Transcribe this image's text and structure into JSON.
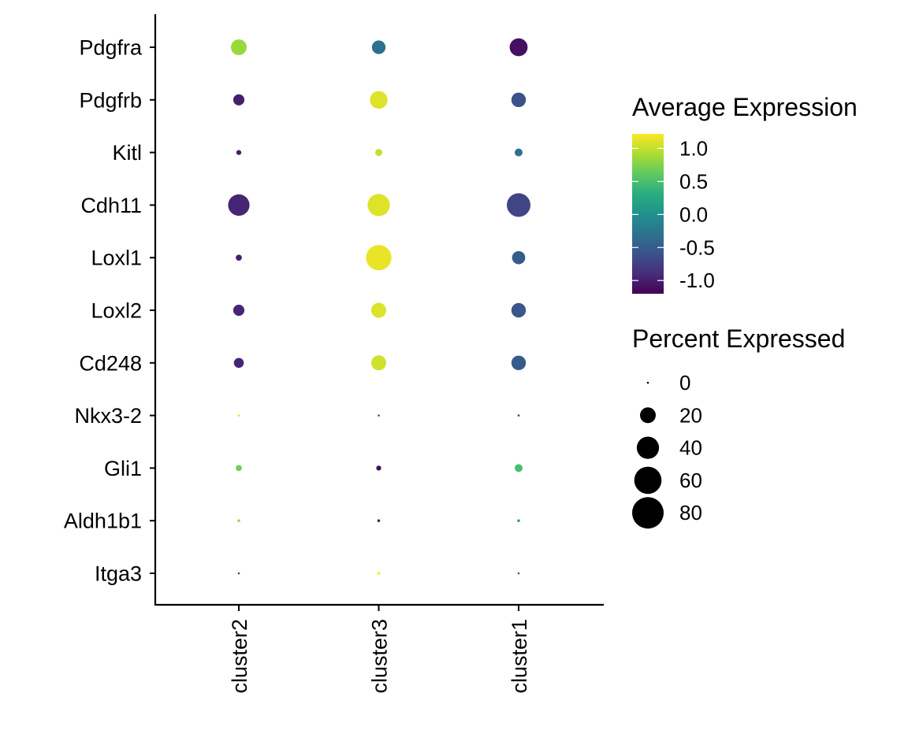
{
  "chart_data": {
    "type": "dotplot",
    "clusters": [
      "cluster2",
      "cluster3",
      "cluster1"
    ],
    "genes": [
      "Pdgfra",
      "Pdgfrb",
      "Kitl",
      "Cdh11",
      "Loxl1",
      "Loxl2",
      "Cd248",
      "Nkx3-2",
      "Gli1",
      "Aldh1b1",
      "Itga3"
    ],
    "avg_expression": [
      [
        0.85,
        -0.3,
        -1.1
      ],
      [
        -1.0,
        1.1,
        -0.6
      ],
      [
        -1.0,
        1.0,
        -0.3
      ],
      [
        -0.95,
        1.1,
        -0.7
      ],
      [
        -1.0,
        1.15,
        -0.5
      ],
      [
        -0.95,
        1.1,
        -0.55
      ],
      [
        -0.95,
        1.05,
        -0.5
      ],
      [
        1.1,
        -0.6,
        -0.8
      ],
      [
        0.7,
        -1.1,
        0.5
      ],
      [
        0.8,
        -1.1,
        0.1
      ],
      [
        -0.8,
        1.2,
        -0.6
      ]
    ],
    "pct_expressed": [
      [
        20,
        15,
        26
      ],
      [
        10,
        25,
        17
      ],
      [
        2,
        4,
        5
      ],
      [
        37,
        40,
        45
      ],
      [
        3,
        52,
        14
      ],
      [
        10,
        18,
        17
      ],
      [
        8,
        18,
        17
      ],
      [
        0.3,
        0.3,
        0.3
      ],
      [
        3,
        2,
        5
      ],
      [
        0.6,
        0.6,
        0.6
      ],
      [
        0.3,
        0.6,
        0.3
      ]
    ],
    "color_legend": {
      "title": "Average Expression",
      "ticks": [
        "1.0",
        "0.5",
        "0.0",
        "-0.5",
        "-1.0"
      ],
      "tick_values": [
        1.0,
        0.5,
        0.0,
        -0.5,
        -1.0
      ],
      "range": [
        -1.2,
        1.22
      ],
      "colormap": "viridis"
    },
    "size_legend": {
      "title": "Percent Expressed",
      "labels": [
        "0",
        "20",
        "40",
        "60",
        "80"
      ],
      "values": [
        0,
        20,
        40,
        60,
        80
      ],
      "max": 80
    }
  }
}
